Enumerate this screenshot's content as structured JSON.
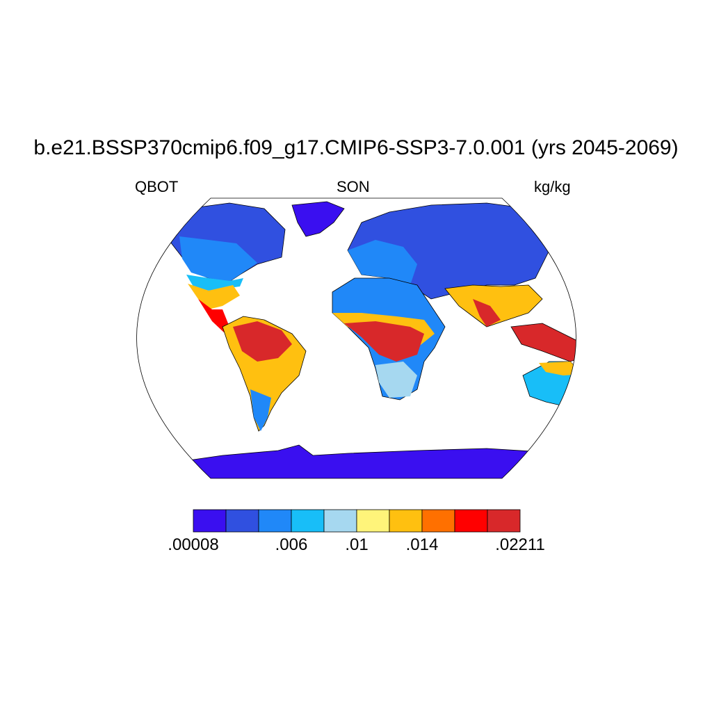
{
  "title": "b.e21.BSSP370cmip6.f09_g17.CMIP6-SSP3-7.0.001 (yrs 2045-2069)",
  "left_label": "QBOT",
  "center_label": "SON",
  "right_label": "kg/kg",
  "colorbar": {
    "colors": [
      "#3a0ff0",
      "#3050e0",
      "#2088f8",
      "#18bef8",
      "#a6d8f0",
      "#fff47a",
      "#ffc010",
      "#ff7000",
      "#ff0000",
      "#d8282a"
    ],
    "labels": [
      ".00008",
      ".006",
      ".01",
      ".014",
      ".02211"
    ]
  },
  "map": {
    "projection": "Robinson",
    "ocean_color": "#ffffff",
    "outline_color": "#000000"
  }
}
